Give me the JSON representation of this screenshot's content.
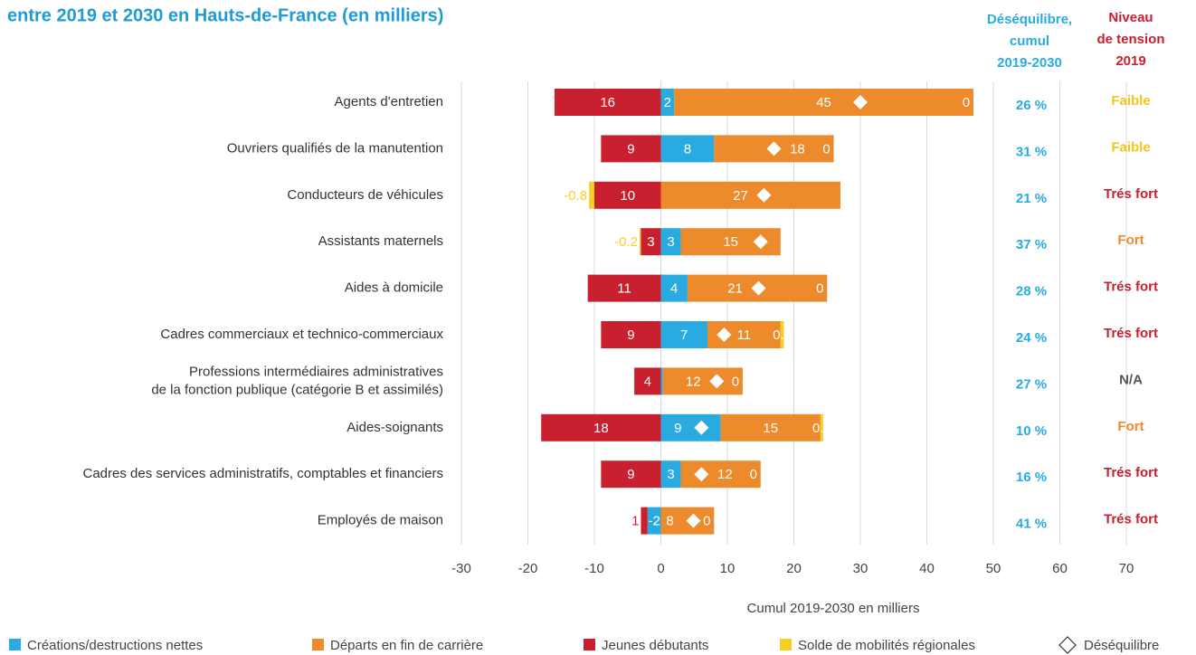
{
  "chart_data": {
    "type": "bar",
    "orientation": "horizontal",
    "stacked": true,
    "title": "entre 2019 et 2030 en Hauts-de-France (en milliers)",
    "x_label": "Cumul 2019-2030 en milliers",
    "categories": [
      "Agents d'entretien",
      "Ouvriers qualifiés de la manutention",
      "Conducteurs de véhicules",
      "Assistants maternels",
      "Aides à domicile",
      "Cadres commerciaux et technico-commerciaux",
      "Professions intermédiaires administratives\nde la fonction publique (catégorie B et assimilés)",
      "Aides-soignants",
      "Cadres des services administratifs, comptables et financiers",
      "Employés de maison"
    ],
    "series": [
      {
        "name": "Créations/destructions nettes",
        "color": "#29abe2",
        "values": [
          2,
          8,
          0,
          3,
          4,
          7,
          0.3,
          9,
          3,
          -2
        ],
        "value_labels": [
          "2",
          "8",
          "0",
          "3",
          "4",
          "7",
          null,
          "9",
          "3",
          "-2"
        ]
      },
      {
        "name": "Départs en fin de carrière",
        "color": "#ec8a2c",
        "values": [
          45,
          18,
          27,
          15,
          21,
          11,
          12,
          15,
          12,
          8
        ]
      },
      {
        "name": "Jeunes débutants",
        "color": "#c8202e",
        "values": [
          -16,
          -9,
          -10,
          -3,
          -11,
          -9,
          -4,
          -18,
          -9,
          -1
        ],
        "value_labels": [
          "16",
          "9",
          "10",
          "3",
          "11",
          "9",
          "4",
          "18",
          "9",
          "1"
        ]
      },
      {
        "name": "Solde de mobilités régionales",
        "color": "#f7cf24",
        "values": [
          0,
          0,
          -0.8,
          -0.2,
          0,
          0.5,
          0,
          0.4,
          0,
          0
        ]
      }
    ],
    "imbalance": {
      "name": "Déséquilibre",
      "values": [
        30,
        17,
        15.5,
        15,
        14.7,
        9.5,
        8.4,
        6.1,
        6.1,
        4.9
      ]
    },
    "xlim": [
      -30,
      70
    ],
    "xticks": [
      -30,
      -20,
      -10,
      0,
      10,
      20,
      30,
      40,
      50,
      60,
      70
    ],
    "grid": true,
    "imbalance_column": {
      "title_lines": [
        "Déséquilibre,",
        "cumul",
        "2019-2030"
      ],
      "color": "#29abe2",
      "values": [
        26,
        31,
        21,
        37,
        28,
        24,
        27,
        10,
        16,
        41
      ],
      "value_labels": [
        "26 %",
        "31 %",
        "21 %",
        "37 %",
        "28 %",
        "24 %",
        "27 %",
        "10 %",
        "16 %",
        "41 %"
      ]
    },
    "tension_column": {
      "title_lines": [
        "Niveau",
        "de tension",
        "2019"
      ],
      "color": "#c8202e",
      "values": [
        "Faible",
        "Faible",
        "Trés fort",
        "Fort",
        "Trés fort",
        "Trés fort",
        "N/A",
        "Fort",
        "Trés fort",
        "Trés fort"
      ],
      "colors": [
        "#f5c518",
        "#f5c518",
        "#c8202e",
        "#ec8a2c",
        "#c8202e",
        "#c8202e",
        "#555555",
        "#ec8a2c",
        "#c8202e",
        "#c8202e"
      ]
    }
  }
}
